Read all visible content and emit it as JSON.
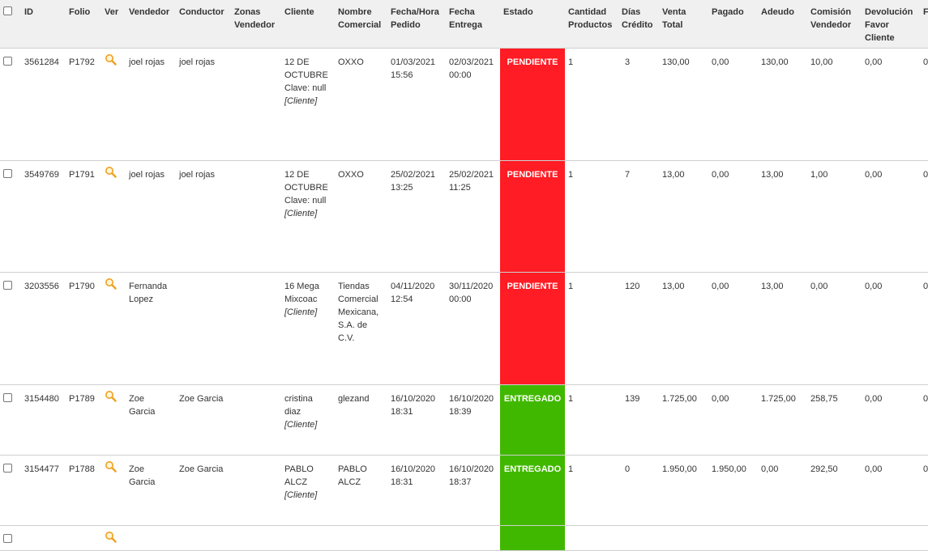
{
  "columns": {
    "id": "ID",
    "folio": "Folio",
    "ver": "Ver",
    "vendedor": "Vendedor",
    "conductor": "Conductor",
    "zonas": "Zonas Vendedor",
    "cliente": "Cliente",
    "nombre": "Nombre Comercial",
    "fecha_pedido": "Fecha/Hora Pedido",
    "fecha_entrega": "Fecha Entrega",
    "estado": "Estado",
    "cantidad": "Cantidad Productos",
    "dias": "Días Crédito",
    "venta": "Venta Total",
    "pagado": "Pagado",
    "adeudo": "Adeudo",
    "comision": "Comisión Vendedor",
    "devolucion": "Devolución Favor Cliente",
    "last": "F"
  },
  "rows": [
    {
      "id": "3561284",
      "folio": "P1792",
      "vendedor": "joel rojas",
      "conductor": "joel rojas",
      "zonas": "",
      "cliente": "12 DE OCTUBRE",
      "cliente_clave": "Clave: null",
      "cliente_tag": "[Cliente]",
      "nombre": "OXXO",
      "fecha_pedido": "01/03/2021 15:56",
      "fecha_entrega": "02/03/2021 00:00",
      "estado": "PENDIENTE",
      "cantidad": "1",
      "dias": "3",
      "venta": "130,00",
      "pagado": "0,00",
      "adeudo": "130,00",
      "comision": "10,00",
      "devolucion": "0,00",
      "last": "0"
    },
    {
      "id": "3549769",
      "folio": "P1791",
      "vendedor": "joel rojas",
      "conductor": "joel rojas",
      "zonas": "",
      "cliente": "12 DE OCTUBRE",
      "cliente_clave": "Clave: null",
      "cliente_tag": "[Cliente]",
      "nombre": "OXXO",
      "fecha_pedido": "25/02/2021 13:25",
      "fecha_entrega": "25/02/2021 11:25",
      "estado": "PENDIENTE",
      "cantidad": "1",
      "dias": "7",
      "venta": "13,00",
      "pagado": "0,00",
      "adeudo": "13,00",
      "comision": "1,00",
      "devolucion": "0,00",
      "last": "0"
    },
    {
      "id": "3203556",
      "folio": "P1790",
      "vendedor": "Fernanda Lopez",
      "conductor": "",
      "zonas": "",
      "cliente": "16 Mega Mixcoac",
      "cliente_clave": "",
      "cliente_tag": "[Cliente]",
      "nombre": "Tiendas Comercial Mexicana, S.A. de C.V.",
      "fecha_pedido": "04/11/2020 12:54",
      "fecha_entrega": "30/11/2020 00:00",
      "estado": "PENDIENTE",
      "cantidad": "1",
      "dias": "120",
      "venta": "13,00",
      "pagado": "0,00",
      "adeudo": "13,00",
      "comision": "0,00",
      "devolucion": "0,00",
      "last": "0"
    },
    {
      "id": "3154480",
      "folio": "P1789",
      "vendedor": "Zoe Garcia",
      "conductor": "Zoe Garcia",
      "zonas": "",
      "cliente": "cristina diaz",
      "cliente_clave": "",
      "cliente_tag": "[Cliente]",
      "nombre": "glezand",
      "fecha_pedido": "16/10/2020 18:31",
      "fecha_entrega": "16/10/2020 18:39",
      "estado": "ENTREGADO",
      "cantidad": "1",
      "dias": "139",
      "venta": "1.725,00",
      "pagado": "0,00",
      "adeudo": "1.725,00",
      "comision": "258,75",
      "devolucion": "0,00",
      "last": "0"
    },
    {
      "id": "3154477",
      "folio": "P1788",
      "vendedor": "Zoe Garcia",
      "conductor": "Zoe Garcia",
      "zonas": "",
      "cliente": "PABLO ALCZ",
      "cliente_clave": "",
      "cliente_tag": "[Cliente]",
      "nombre": "PABLO ALCZ",
      "fecha_pedido": "16/10/2020 18:31",
      "fecha_entrega": "16/10/2020 18:37",
      "estado": "ENTREGADO",
      "cantidad": "1",
      "dias": "0",
      "venta": "1.950,00",
      "pagado": "1.950,00",
      "adeudo": "0,00",
      "comision": "292,50",
      "devolucion": "0,00",
      "last": "0"
    }
  ],
  "colors": {
    "pendiente": "#ff1c24",
    "entregado": "#41b800",
    "view_icon": "#f0a020"
  },
  "icons": {
    "ver": "magnifier-icon"
  }
}
